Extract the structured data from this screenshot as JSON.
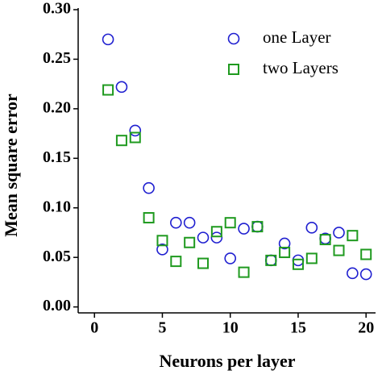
{
  "chart_data": {
    "type": "scatter",
    "x_label": "Neurons per layer",
    "y_label": "Mean square error",
    "xlim": [
      -1.2,
      20.7
    ],
    "ylim": [
      -0.006,
      0.3
    ],
    "xticks": [
      0,
      5,
      10,
      15,
      20
    ],
    "yticks": [
      {
        "value": 0,
        "label": "0.00"
      },
      {
        "value": 0.05,
        "label": "0.05"
      },
      {
        "value": 0.1,
        "label": "0.10"
      },
      {
        "value": 0.15,
        "label": "0.15"
      },
      {
        "value": 0.2,
        "label": "0.20"
      },
      {
        "value": 0.25,
        "label": "0.25"
      },
      {
        "value": 0.3,
        "label": "0.30"
      }
    ],
    "legend": "upper right",
    "x": [
      1,
      2,
      3,
      4,
      5,
      6,
      7,
      8,
      9,
      10,
      11,
      12,
      13,
      14,
      15,
      16,
      17,
      18,
      19,
      20
    ],
    "series": [
      {
        "name": "one Layer",
        "color": "#1f1fd0",
        "marker": "circle",
        "values": [
          0.27,
          0.222,
          0.178,
          0.12,
          0.058,
          0.085,
          0.085,
          0.07,
          0.07,
          0.049,
          0.079,
          0.081,
          0.047,
          0.064,
          0.047,
          0.08,
          0.069,
          0.075,
          0.034,
          0.033
        ]
      },
      {
        "name": "two Layers",
        "color": "#1f9a1f",
        "marker": "square",
        "values": [
          0.219,
          0.168,
          0.171,
          0.09,
          0.067,
          0.046,
          0.065,
          0.044,
          0.076,
          0.085,
          0.035,
          0.081,
          0.047,
          0.055,
          0.043,
          0.049,
          0.068,
          0.057,
          0.072,
          0.053
        ]
      }
    ]
  }
}
